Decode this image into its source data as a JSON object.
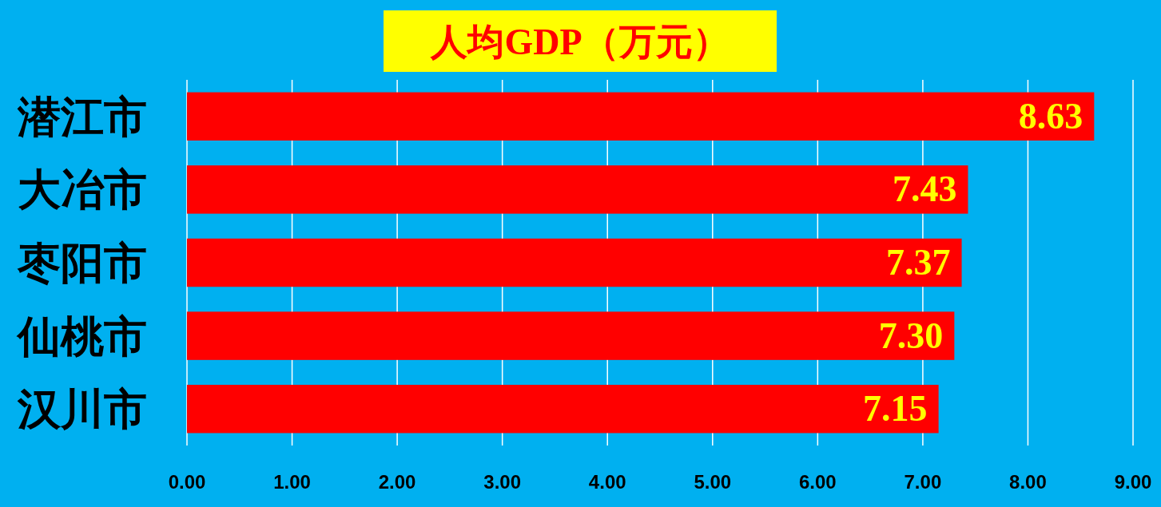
{
  "chart_data": {
    "type": "bar",
    "orientation": "horizontal",
    "title": "人均GDP（万元）",
    "categories": [
      "潜江市",
      "大冶市",
      "枣阳市",
      "仙桃市",
      "汉川市"
    ],
    "values": [
      8.63,
      7.43,
      7.37,
      7.3,
      7.15
    ],
    "color": "#ff0000",
    "value_labels": [
      "8.63",
      "7.43",
      "7.37",
      "7.30",
      "7.15"
    ],
    "grid": "x",
    "xlim": [
      0,
      9
    ],
    "xticks": [
      {
        "value": 0,
        "label": "0.00"
      },
      {
        "value": 1,
        "label": "1.00"
      },
      {
        "value": 2,
        "label": "2.00"
      },
      {
        "value": 3,
        "label": "3.00"
      },
      {
        "value": 4,
        "label": "4.00"
      },
      {
        "value": 5,
        "label": "5.00"
      },
      {
        "value": 6,
        "label": "6.00"
      },
      {
        "value": 7,
        "label": "7.00"
      },
      {
        "value": 8,
        "label": "8.00"
      },
      {
        "value": 9,
        "label": "9.00"
      }
    ]
  }
}
